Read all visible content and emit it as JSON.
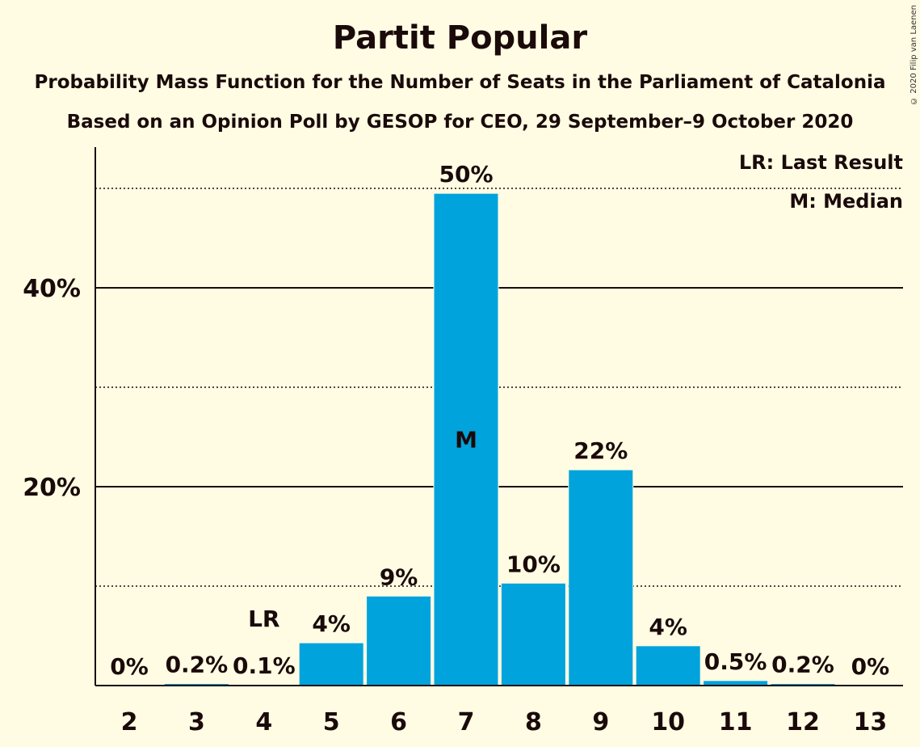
{
  "header": {
    "title": "Partit Popular",
    "subtitle1": "Probability Mass Function for the Number of Seats in the Parliament of Catalonia",
    "subtitle2": "Based on an Opinion Poll by GESOP for CEO, 29 September–9 October 2020",
    "copyright": "© 2020 Filip van Laenen"
  },
  "legend": {
    "last_result": "LR: Last Result",
    "median": "M: Median"
  },
  "colors": {
    "background": "#FFFCE3",
    "bar": "#00A3DC",
    "text": "#1a0a0a"
  },
  "chart_data": {
    "type": "bar",
    "title": "Partit Popular",
    "xlabel": "",
    "ylabel": "",
    "categories": [
      "2",
      "3",
      "4",
      "5",
      "6",
      "7",
      "8",
      "9",
      "10",
      "11",
      "12",
      "13"
    ],
    "values": [
      0,
      0.2,
      0.1,
      4.3,
      9.0,
      49.5,
      10.3,
      21.7,
      4.0,
      0.5,
      0.2,
      0
    ],
    "labels": [
      "0%",
      "0.2%",
      "0.1%",
      "4%",
      "9%",
      "50%",
      "10%",
      "22%",
      "4%",
      "0.5%",
      "0.2%",
      "0%"
    ],
    "ylim": [
      0,
      54
    ],
    "y_ticks": [
      20,
      40
    ],
    "y_tick_labels": [
      "20%",
      "40%"
    ],
    "minor_gridlines": [
      10,
      30,
      50
    ],
    "last_result": {
      "category": "4",
      "label": "LR"
    },
    "median": {
      "category": "7",
      "label": "M"
    },
    "legend_position": "top-right"
  }
}
